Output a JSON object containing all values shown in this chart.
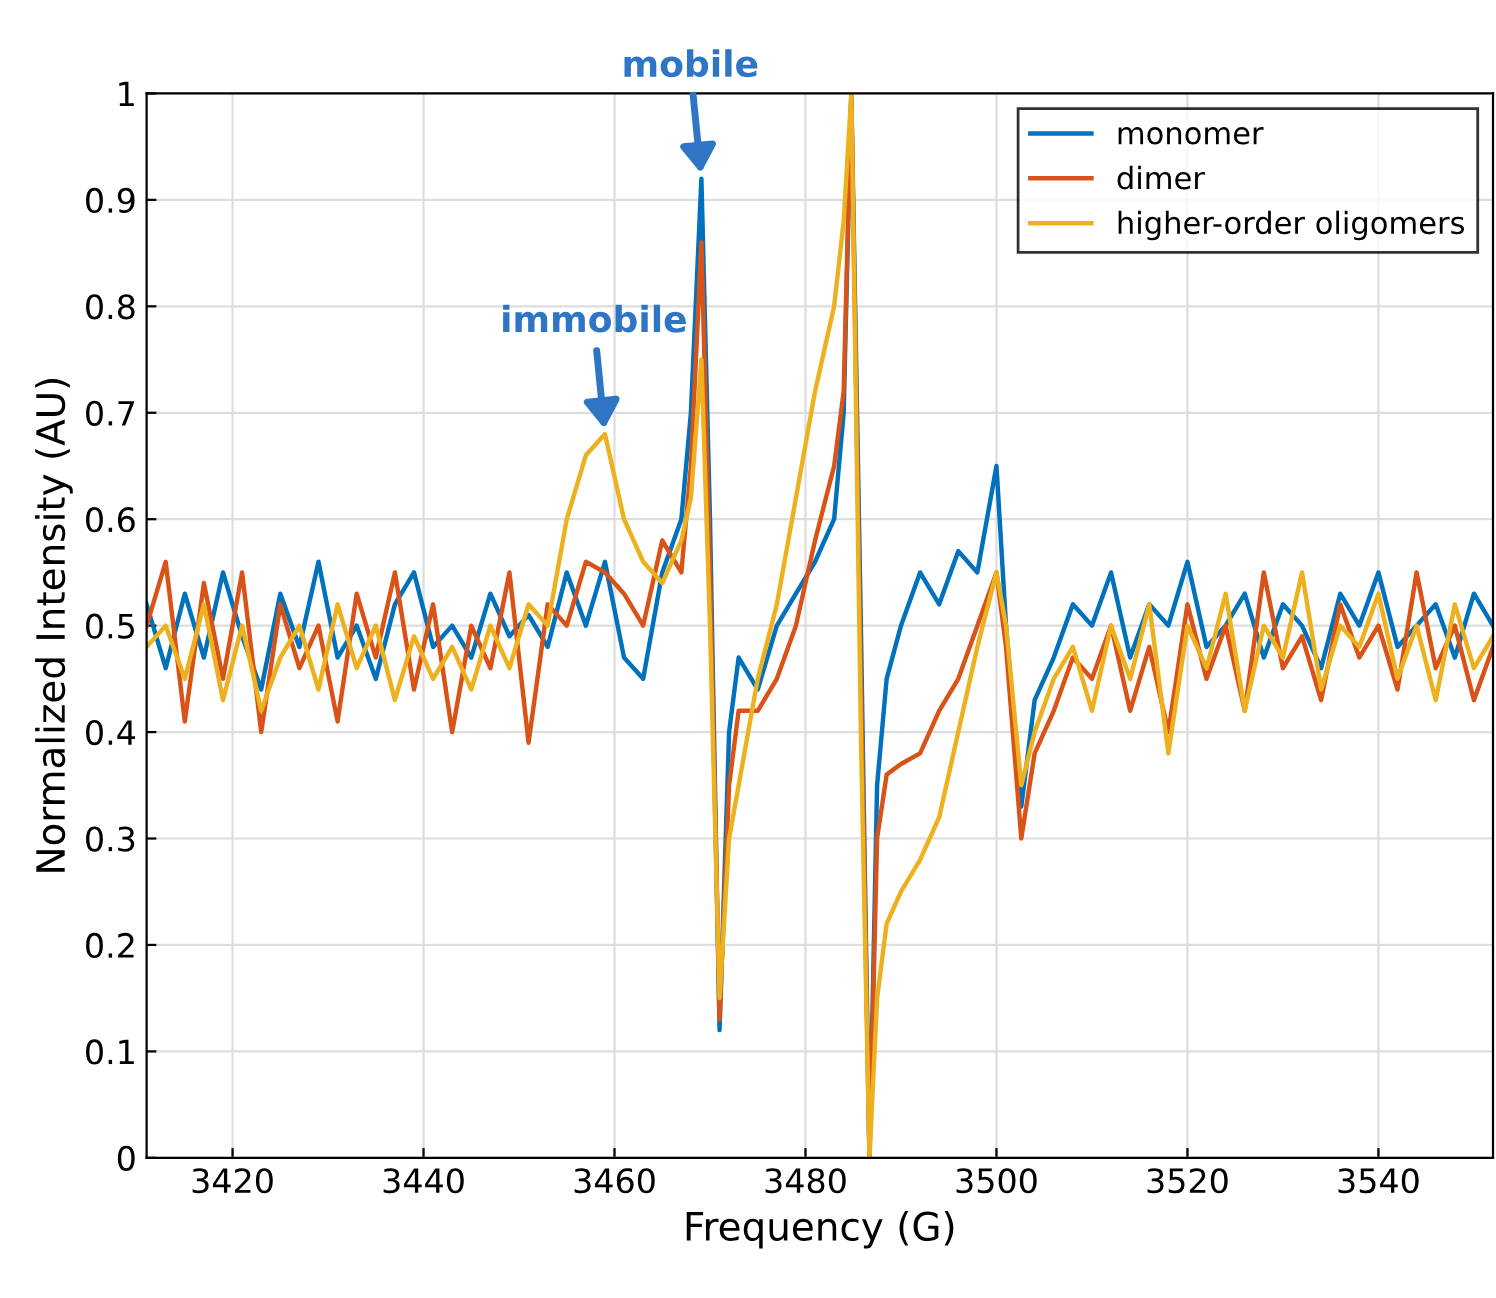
{
  "chart_data": {
    "type": "line",
    "xlabel": "Frequency (G)",
    "ylabel": "Normalized Intensity (AU)",
    "x": [
      3411,
      3413,
      3415,
      3417,
      3419,
      3421,
      3423,
      3425,
      3427,
      3429,
      3431,
      3433,
      3435,
      3437,
      3439,
      3441,
      3443,
      3445,
      3447,
      3449,
      3451,
      3453,
      3455,
      3457,
      3459,
      3461,
      3463,
      3465,
      3467,
      3468,
      3469.1,
      3470,
      3471,
      3472,
      3473,
      3475,
      3477,
      3479,
      3481,
      3483,
      3484,
      3484.8,
      3485.8,
      3486.7,
      3487.5,
      3488.5,
      3490,
      3492,
      3494,
      3496,
      3498,
      3500,
      3501,
      3502.6,
      3504,
      3506,
      3508,
      3510,
      3512,
      3514,
      3516,
      3518,
      3520,
      3522,
      3524,
      3526,
      3528,
      3530,
      3532,
      3534,
      3536,
      3538,
      3540,
      3542,
      3544,
      3546,
      3548,
      3550,
      3552
    ],
    "series": [
      {
        "name": "monomer",
        "color": "#0072bd",
        "values": [
          0.52,
          0.46,
          0.53,
          0.47,
          0.55,
          0.49,
          0.44,
          0.53,
          0.48,
          0.56,
          0.47,
          0.5,
          0.45,
          0.52,
          0.55,
          0.48,
          0.5,
          0.47,
          0.53,
          0.49,
          0.51,
          0.48,
          0.55,
          0.5,
          0.56,
          0.47,
          0.45,
          0.55,
          0.6,
          0.7,
          0.92,
          0.6,
          0.12,
          0.4,
          0.47,
          0.44,
          0.5,
          0.53,
          0.56,
          0.6,
          0.7,
          1.0,
          0.5,
          0.0,
          0.35,
          0.45,
          0.5,
          0.55,
          0.52,
          0.57,
          0.55,
          0.65,
          0.5,
          0.33,
          0.43,
          0.47,
          0.52,
          0.5,
          0.55,
          0.47,
          0.52,
          0.5,
          0.56,
          0.48,
          0.5,
          0.53,
          0.47,
          0.52,
          0.5,
          0.46,
          0.53,
          0.5,
          0.55,
          0.48,
          0.5,
          0.52,
          0.47,
          0.53,
          0.5
        ]
      },
      {
        "name": "dimer",
        "color": "#d95319",
        "values": [
          0.5,
          0.56,
          0.41,
          0.54,
          0.45,
          0.55,
          0.4,
          0.52,
          0.46,
          0.5,
          0.41,
          0.53,
          0.47,
          0.55,
          0.44,
          0.52,
          0.4,
          0.5,
          0.46,
          0.55,
          0.39,
          0.52,
          0.5,
          0.56,
          0.55,
          0.53,
          0.5,
          0.58,
          0.55,
          0.65,
          0.86,
          0.55,
          0.13,
          0.35,
          0.42,
          0.42,
          0.45,
          0.5,
          0.58,
          0.65,
          0.72,
          1.0,
          0.45,
          0.0,
          0.3,
          0.36,
          0.37,
          0.38,
          0.42,
          0.45,
          0.5,
          0.55,
          0.48,
          0.3,
          0.38,
          0.42,
          0.47,
          0.45,
          0.5,
          0.42,
          0.48,
          0.4,
          0.52,
          0.45,
          0.5,
          0.42,
          0.55,
          0.46,
          0.49,
          0.43,
          0.52,
          0.47,
          0.5,
          0.44,
          0.55,
          0.46,
          0.5,
          0.43,
          0.48
        ]
      },
      {
        "name": "higher-order oligomers",
        "color": "#edb120",
        "values": [
          0.48,
          0.5,
          0.45,
          0.52,
          0.43,
          0.5,
          0.42,
          0.47,
          0.5,
          0.44,
          0.52,
          0.46,
          0.5,
          0.43,
          0.49,
          0.45,
          0.48,
          0.44,
          0.5,
          0.46,
          0.52,
          0.5,
          0.6,
          0.66,
          0.68,
          0.6,
          0.56,
          0.54,
          0.58,
          0.62,
          0.75,
          0.5,
          0.15,
          0.3,
          0.35,
          0.45,
          0.52,
          0.62,
          0.72,
          0.8,
          0.88,
          1.0,
          0.4,
          0.0,
          0.15,
          0.22,
          0.25,
          0.28,
          0.32,
          0.4,
          0.48,
          0.55,
          0.5,
          0.35,
          0.4,
          0.45,
          0.48,
          0.42,
          0.5,
          0.45,
          0.52,
          0.38,
          0.5,
          0.46,
          0.53,
          0.42,
          0.5,
          0.47,
          0.55,
          0.44,
          0.5,
          0.48,
          0.53,
          0.45,
          0.5,
          0.43,
          0.52,
          0.46,
          0.49
        ]
      }
    ],
    "annotations": [
      {
        "text": "mobile",
        "x": 3469.1,
        "y": 0.92
      },
      {
        "text": "immobile",
        "x": 3459,
        "y": 0.68
      }
    ],
    "xlim": [
      3411,
      3552
    ],
    "ylim": [
      0,
      1
    ],
    "xticks": [
      3420,
      3440,
      3460,
      3480,
      3500,
      3520,
      3540
    ],
    "yticks": [
      0,
      0.1,
      0.2,
      0.3,
      0.4,
      0.5,
      0.6,
      0.7,
      0.8,
      0.9,
      1
    ],
    "grid": true,
    "legend": "top right",
    "marker": "none",
    "line_style": "solid"
  }
}
